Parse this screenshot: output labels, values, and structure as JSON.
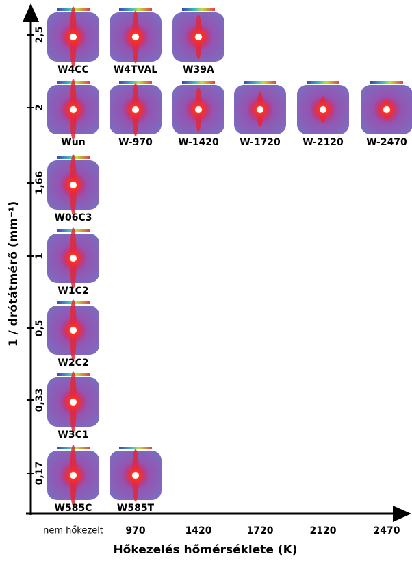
{
  "y_axis": {
    "title": "1 / drótátmérő (mm⁻¹)"
  },
  "x_axis": {
    "title": "Hőkezelés hőmérséklete (K)",
    "categories": [
      "nem hőkezelt",
      "970",
      "1420",
      "1720",
      "2120",
      "2470"
    ]
  },
  "rows": [
    {
      "label": "2,5",
      "panels": [
        {
          "label": "W4CC"
        },
        {
          "label": "W4TVAL"
        },
        {
          "label": "W39A"
        }
      ]
    },
    {
      "label": "2",
      "panels": [
        {
          "label": "Wun"
        },
        {
          "label": "W-970"
        },
        {
          "label": "W-1420"
        },
        {
          "label": "W-1720"
        },
        {
          "label": "W-2120"
        },
        {
          "label": "W-2470"
        }
      ]
    },
    {
      "label": "1,66",
      "panels": [
        {
          "label": "W06C3"
        }
      ]
    },
    {
      "label": "1",
      "panels": [
        {
          "label": "W1C2"
        }
      ]
    },
    {
      "label": "0,5",
      "panels": [
        {
          "label": "W2C2"
        }
      ]
    },
    {
      "label": "0,33",
      "panels": [
        {
          "label": "W3C1"
        }
      ]
    },
    {
      "label": "0,17",
      "panels": [
        {
          "label": "W585C"
        },
        {
          "label": "W585T"
        }
      ]
    }
  ]
}
